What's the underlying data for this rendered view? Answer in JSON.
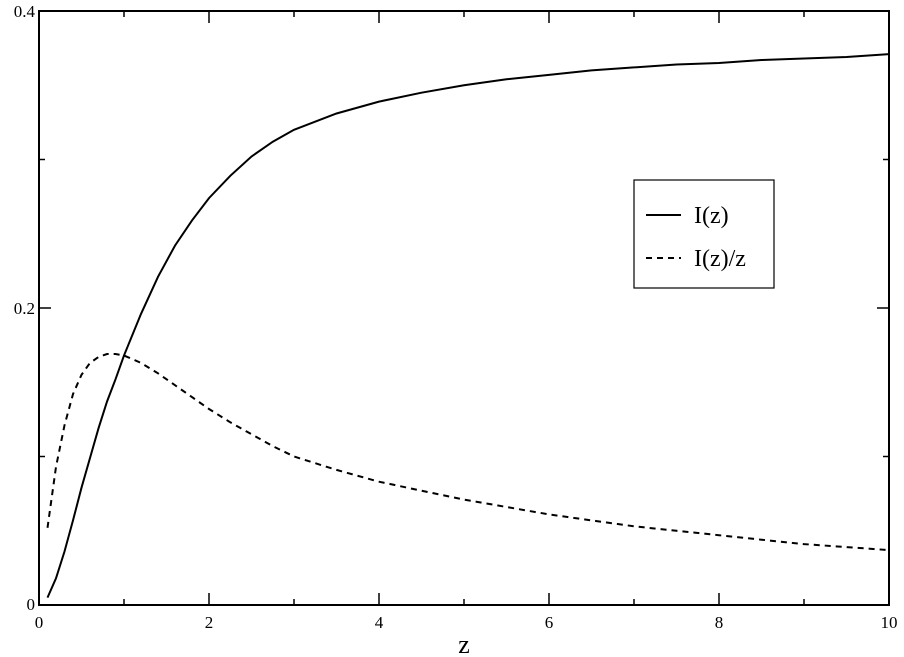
{
  "chart_data": {
    "type": "line",
    "title": "",
    "xlabel": "z",
    "ylabel": "",
    "xlim": [
      0,
      10
    ],
    "ylim": [
      0,
      0.4
    ],
    "grid": false,
    "legend_position": "right",
    "x_ticks": [
      {
        "value": 0,
        "label": "0"
      },
      {
        "value": 2,
        "label": "2"
      },
      {
        "value": 4,
        "label": "4"
      },
      {
        "value": 6,
        "label": "6"
      },
      {
        "value": 8,
        "label": "8"
      },
      {
        "value": 10,
        "label": "10"
      }
    ],
    "x_minor_ticks": [
      1,
      3,
      5,
      7,
      9
    ],
    "y_ticks": [
      {
        "value": 0,
        "label": "0"
      },
      {
        "value": 0.2,
        "label": "0.2"
      },
      {
        "value": 0.4,
        "label": "0.4"
      }
    ],
    "y_minor_ticks": [
      0.1,
      0.3
    ],
    "series": [
      {
        "name": "I(z)",
        "style": "solid",
        "color": "#000000",
        "x": [
          0.1,
          0.2,
          0.3,
          0.4,
          0.5,
          0.6,
          0.7,
          0.8,
          0.9,
          1.0,
          1.2,
          1.4,
          1.6,
          1.8,
          2.0,
          2.25,
          2.5,
          2.75,
          3.0,
          3.5,
          4.0,
          4.5,
          5.0,
          5.5,
          6.0,
          6.5,
          7.0,
          7.5,
          8.0,
          8.5,
          9.0,
          9.5,
          10.0
        ],
        "y": [
          0.005,
          0.018,
          0.036,
          0.057,
          0.079,
          0.099,
          0.119,
          0.137,
          0.152,
          0.168,
          0.196,
          0.221,
          0.242,
          0.259,
          0.274,
          0.289,
          0.302,
          0.312,
          0.32,
          0.331,
          0.339,
          0.345,
          0.35,
          0.354,
          0.357,
          0.36,
          0.362,
          0.364,
          0.365,
          0.367,
          0.368,
          0.369,
          0.371
        ]
      },
      {
        "name": "I(z)/z",
        "style": "dashed",
        "color": "#000000",
        "x": [
          0.1,
          0.2,
          0.3,
          0.4,
          0.5,
          0.6,
          0.7,
          0.8,
          0.9,
          1.0,
          1.2,
          1.4,
          1.6,
          1.8,
          2.0,
          2.25,
          2.5,
          2.75,
          3.0,
          3.5,
          4.0,
          4.5,
          5.0,
          5.5,
          6.0,
          6.5,
          7.0,
          7.5,
          8.0,
          8.5,
          9.0,
          9.5,
          10.0
        ],
        "y": [
          0.052,
          0.093,
          0.121,
          0.142,
          0.155,
          0.163,
          0.167,
          0.169,
          0.169,
          0.168,
          0.163,
          0.156,
          0.148,
          0.14,
          0.132,
          0.123,
          0.115,
          0.107,
          0.1,
          0.091,
          0.083,
          0.077,
          0.071,
          0.066,
          0.061,
          0.057,
          0.053,
          0.05,
          0.047,
          0.044,
          0.041,
          0.039,
          0.037
        ]
      }
    ]
  }
}
